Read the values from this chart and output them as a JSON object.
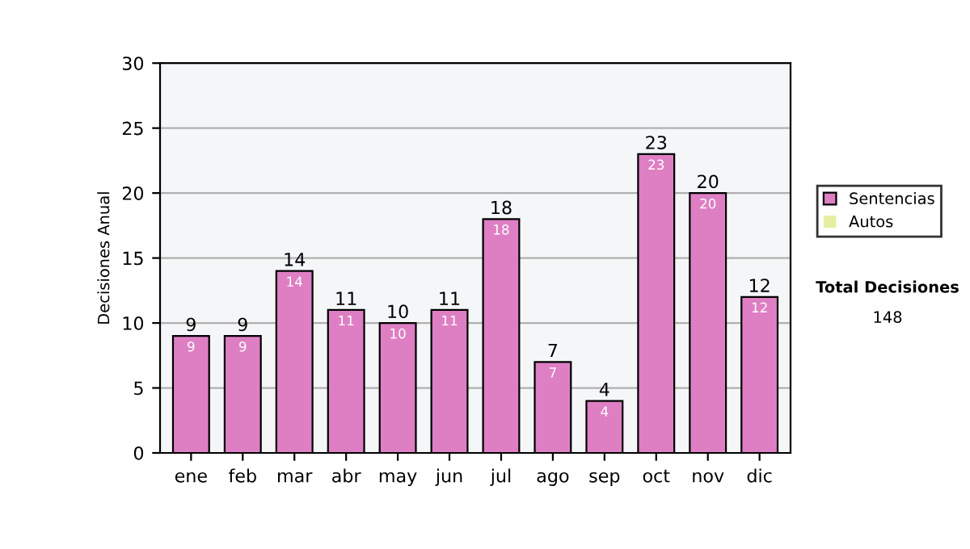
{
  "chart_data": {
    "type": "bar",
    "ylabel": "Decisiones Anual",
    "categories": [
      "ene",
      "feb",
      "mar",
      "abr",
      "may",
      "jun",
      "jul",
      "ago",
      "sep",
      "oct",
      "nov",
      "dic"
    ],
    "stacked": true,
    "series": [
      {
        "name": "Sentencias",
        "color": "#de7fc4",
        "values": [
          9,
          9,
          14,
          11,
          10,
          11,
          18,
          7,
          4,
          23,
          20,
          12
        ],
        "value_labels": [
          "9",
          "9",
          "14",
          "11",
          "10",
          "11",
          "18",
          "7",
          "4",
          "23",
          "20",
          "12"
        ]
      },
      {
        "name": "Autos",
        "color": "#e6eea0",
        "values": [
          0,
          0,
          0,
          0,
          0,
          0,
          0,
          0,
          0,
          0,
          0,
          0
        ]
      }
    ],
    "totals": [
      "9",
      "9",
      "14",
      "11",
      "10",
      "11",
      "18",
      "7",
      "4",
      "23",
      "20",
      "12"
    ],
    "ylim": [
      0,
      30
    ],
    "yticks": [
      0,
      5,
      10,
      15,
      20,
      25,
      30
    ],
    "grid": "y",
    "legend": "right",
    "annotations": [
      "Total Decisiones",
      "148"
    ]
  }
}
